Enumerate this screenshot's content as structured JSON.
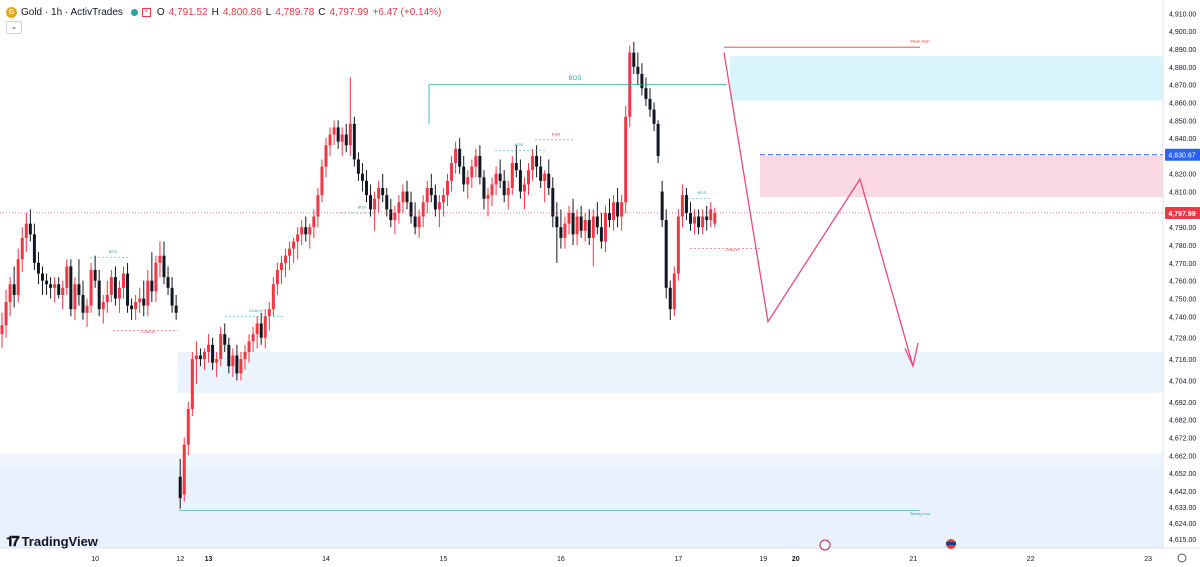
{
  "header": {
    "symbol": "Gold · 1h · ActivTrades",
    "open_label": "O",
    "open": "4,791.52",
    "high_label": "H",
    "high": "4,800.86",
    "low_label": "L",
    "low": "4,789.78",
    "close_label": "C",
    "close": "4,797.99",
    "change": "+6.47 (+0.14%)"
  },
  "logo_text": "TradingView",
  "colors": {
    "bull": "#f23645",
    "bear": "#131722",
    "accent": "#2962ff",
    "zone_pink": "#f8c7d8",
    "zone_cyan": "#b9ebf5",
    "zone_blue": "#e3eefb"
  },
  "chart_data": {
    "type": "candlestick",
    "ylim": [
      4610,
      4913
    ],
    "y_ticks": [
      "4,910.00",
      "4,900.00",
      "4,890.00",
      "4,880.00",
      "4,870.00",
      "4,860.00",
      "4,850.00",
      "4,840.00",
      "4,820.00",
      "4,810.00",
      "4,800.00",
      "4,790.00",
      "4,780.00",
      "4,770.00",
      "4,760.00",
      "4,750.00",
      "4,740.00",
      "4,728.00",
      "4,716.00",
      "4,704.00",
      "4,692.00",
      "4,682.00",
      "4,672.00",
      "4,662.00",
      "4,652.00",
      "4,642.00",
      "4,633.00",
      "4,624.00",
      "4,615.00"
    ],
    "x_ticks": [
      {
        "label": "10",
        "bar": 23
      },
      {
        "label": "12",
        "bar": 44
      },
      {
        "label": "13",
        "bar": 51
      },
      {
        "label": "14",
        "bar": 80
      },
      {
        "label": "15",
        "bar": 109
      },
      {
        "label": "16",
        "bar": 138
      },
      {
        "label": "17",
        "bar": 167
      },
      {
        "label": "19",
        "bar": 188
      },
      {
        "label": "20",
        "bar": 196
      },
      {
        "label": "21",
        "bar": 225
      },
      {
        "label": "22",
        "bar": 254
      },
      {
        "label": "23",
        "bar": 283
      }
    ],
    "current_price": "4,797.99",
    "marked_price": "4,830.67",
    "candles": [
      [
        4730,
        4742,
        4722,
        4735
      ],
      [
        4735,
        4755,
        4728,
        4748
      ],
      [
        4748,
        4762,
        4740,
        4758
      ],
      [
        4758,
        4768,
        4745,
        4752
      ],
      [
        4752,
        4778,
        4748,
        4772
      ],
      [
        4772,
        4790,
        4765,
        4784
      ],
      [
        4784,
        4798,
        4776,
        4792
      ],
      [
        4792,
        4800,
        4782,
        4786
      ],
      [
        4786,
        4792,
        4766,
        4770
      ],
      [
        4770,
        4776,
        4758,
        4764
      ],
      [
        4764,
        4768,
        4752,
        4760
      ],
      [
        4760,
        4764,
        4752,
        4758
      ],
      [
        4758,
        4762,
        4750,
        4756
      ],
      [
        4756,
        4762,
        4748,
        4758
      ],
      [
        4758,
        4762,
        4750,
        4752
      ],
      [
        4752,
        4760,
        4744,
        4756
      ],
      [
        4756,
        4772,
        4752,
        4768
      ],
      [
        4768,
        4772,
        4740,
        4744
      ],
      [
        4744,
        4762,
        4738,
        4758
      ],
      [
        4758,
        4772,
        4746,
        4752
      ],
      [
        4752,
        4760,
        4738,
        4742
      ],
      [
        4742,
        4750,
        4734,
        4746
      ],
      [
        4746,
        4770,
        4742,
        4766
      ],
      [
        4766,
        4774,
        4756,
        4760
      ],
      [
        4760,
        4766,
        4740,
        4744
      ],
      [
        4744,
        4752,
        4736,
        4748
      ],
      [
        4748,
        4760,
        4742,
        4752
      ],
      [
        4752,
        4766,
        4748,
        4762
      ],
      [
        4762,
        4768,
        4746,
        4750
      ],
      [
        4750,
        4760,
        4742,
        4756
      ],
      [
        4756,
        4768,
        4750,
        4764
      ],
      [
        4764,
        4770,
        4742,
        4746
      ],
      [
        4746,
        4750,
        4738,
        4744
      ],
      [
        4744,
        4752,
        4738,
        4748
      ],
      [
        4748,
        4756,
        4742,
        4750
      ],
      [
        4750,
        4760,
        4740,
        4746
      ],
      [
        4746,
        4766,
        4740,
        4760
      ],
      [
        4760,
        4776,
        4748,
        4754
      ],
      [
        4754,
        4774,
        4748,
        4770
      ],
      [
        4770,
        4782,
        4762,
        4774
      ],
      [
        4774,
        4782,
        4758,
        4762
      ],
      [
        4762,
        4768,
        4752,
        4756
      ],
      [
        4756,
        4762,
        4742,
        4746
      ],
      [
        4746,
        4752,
        4738,
        4742
      ],
      [
        4650,
        4660,
        4632,
        4638
      ],
      [
        4640,
        4672,
        4636,
        4668
      ],
      [
        4668,
        4692,
        4662,
        4688
      ],
      [
        4688,
        4720,
        4684,
        4716
      ],
      [
        4716,
        4726,
        4702,
        4718
      ],
      [
        4718,
        4722,
        4712,
        4716
      ],
      [
        4716,
        4722,
        4710,
        4720
      ],
      [
        4720,
        4730,
        4714,
        4724
      ],
      [
        4724,
        4728,
        4710,
        4714
      ],
      [
        4714,
        4720,
        4706,
        4716
      ],
      [
        4716,
        4734,
        4712,
        4730
      ],
      [
        4730,
        4736,
        4720,
        4724
      ],
      [
        4724,
        4728,
        4708,
        4712
      ],
      [
        4712,
        4722,
        4706,
        4718
      ],
      [
        4718,
        4724,
        4704,
        4708
      ],
      [
        4708,
        4720,
        4704,
        4716
      ],
      [
        4716,
        4724,
        4710,
        4720
      ],
      [
        4720,
        4730,
        4714,
        4726
      ],
      [
        4726,
        4734,
        4720,
        4730
      ],
      [
        4730,
        4740,
        4722,
        4736
      ],
      [
        4736,
        4742,
        4724,
        4728
      ],
      [
        4728,
        4744,
        4722,
        4740
      ],
      [
        4740,
        4748,
        4732,
        4744
      ],
      [
        4744,
        4762,
        4740,
        4758
      ],
      [
        4758,
        4770,
        4752,
        4766
      ],
      [
        4766,
        4774,
        4758,
        4770
      ],
      [
        4770,
        4778,
        4762,
        4774
      ],
      [
        4774,
        4782,
        4766,
        4778
      ],
      [
        4778,
        4784,
        4770,
        4782
      ],
      [
        4782,
        4790,
        4772,
        4786
      ],
      [
        4786,
        4794,
        4780,
        4790
      ],
      [
        4790,
        4796,
        4782,
        4786
      ],
      [
        4786,
        4792,
        4778,
        4790
      ],
      [
        4790,
        4800,
        4784,
        4796
      ],
      [
        4796,
        4812,
        4790,
        4808
      ],
      [
        4808,
        4828,
        4804,
        4824
      ],
      [
        4824,
        4840,
        4818,
        4836
      ],
      [
        4836,
        4846,
        4830,
        4842
      ],
      [
        4842,
        4850,
        4836,
        4846
      ],
      [
        4846,
        4850,
        4834,
        4838
      ],
      [
        4838,
        4846,
        4830,
        4842
      ],
      [
        4842,
        4848,
        4832,
        4836
      ],
      [
        4836,
        4874,
        4830,
        4848
      ],
      [
        4848,
        4852,
        4824,
        4828
      ],
      [
        4828,
        4832,
        4816,
        4820
      ],
      [
        4820,
        4826,
        4810,
        4816
      ],
      [
        4816,
        4822,
        4804,
        4808
      ],
      [
        4808,
        4814,
        4796,
        4800
      ],
      [
        4800,
        4810,
        4788,
        4806
      ],
      [
        4806,
        4816,
        4798,
        4812
      ],
      [
        4812,
        4820,
        4804,
        4808
      ],
      [
        4808,
        4812,
        4796,
        4800
      ],
      [
        4800,
        4806,
        4790,
        4794
      ],
      [
        4794,
        4802,
        4786,
        4798
      ],
      [
        4798,
        4808,
        4792,
        4804
      ],
      [
        4804,
        4814,
        4798,
        4810
      ],
      [
        4810,
        4816,
        4800,
        4804
      ],
      [
        4804,
        4810,
        4792,
        4796
      ],
      [
        4796,
        4804,
        4786,
        4790
      ],
      [
        4790,
        4800,
        4784,
        4796
      ],
      [
        4796,
        4808,
        4790,
        4804
      ],
      [
        4804,
        4816,
        4798,
        4812
      ],
      [
        4812,
        4820,
        4804,
        4808
      ],
      [
        4808,
        4814,
        4796,
        4800
      ],
      [
        4800,
        4808,
        4790,
        4804
      ],
      [
        4804,
        4812,
        4796,
        4808
      ],
      [
        4808,
        4820,
        4802,
        4816
      ],
      [
        4816,
        4830,
        4810,
        4826
      ],
      [
        4826,
        4838,
        4820,
        4834
      ],
      [
        4834,
        4840,
        4820,
        4824
      ],
      [
        4824,
        4830,
        4810,
        4814
      ],
      [
        4814,
        4822,
        4806,
        4818
      ],
      [
        4818,
        4828,
        4812,
        4824
      ],
      [
        4824,
        4834,
        4818,
        4830
      ],
      [
        4830,
        4836,
        4814,
        4818
      ],
      [
        4818,
        4822,
        4800,
        4806
      ],
      [
        4806,
        4812,
        4796,
        4808
      ],
      [
        4808,
        4818,
        4802,
        4814
      ],
      [
        4814,
        4824,
        4808,
        4820
      ],
      [
        4820,
        4828,
        4812,
        4816
      ],
      [
        4816,
        4822,
        4804,
        4808
      ],
      [
        4808,
        4816,
        4800,
        4812
      ],
      [
        4812,
        4830,
        4808,
        4826
      ],
      [
        4826,
        4836,
        4818,
        4822
      ],
      [
        4822,
        4828,
        4806,
        4810
      ],
      [
        4810,
        4818,
        4800,
        4814
      ],
      [
        4814,
        4826,
        4808,
        4822
      ],
      [
        4822,
        4834,
        4816,
        4830
      ],
      [
        4830,
        4836,
        4818,
        4824
      ],
      [
        4824,
        4830,
        4812,
        4816
      ],
      [
        4816,
        4822,
        4804,
        4820
      ],
      [
        4820,
        4828,
        4808,
        4812
      ],
      [
        4812,
        4818,
        4790,
        4796
      ],
      [
        4796,
        4804,
        4770,
        4790
      ],
      [
        4790,
        4800,
        4778,
        4784
      ],
      [
        4784,
        4796,
        4778,
        4792
      ],
      [
        4792,
        4802,
        4786,
        4798
      ],
      [
        4798,
        4806,
        4780,
        4786
      ],
      [
        4786,
        4800,
        4780,
        4796
      ],
      [
        4796,
        4802,
        4784,
        4788
      ],
      [
        4788,
        4798,
        4782,
        4794
      ],
      [
        4794,
        4800,
        4780,
        4784
      ],
      [
        4784,
        4800,
        4768,
        4796
      ],
      [
        4796,
        4804,
        4786,
        4790
      ],
      [
        4790,
        4798,
        4778,
        4782
      ],
      [
        4782,
        4802,
        4776,
        4798
      ],
      [
        4798,
        4806,
        4790,
        4794
      ],
      [
        4794,
        4808,
        4788,
        4804
      ],
      [
        4804,
        4812,
        4790,
        4796
      ],
      [
        4796,
        4808,
        4788,
        4804
      ],
      [
        4804,
        4858,
        4798,
        4852
      ],
      [
        4852,
        4892,
        4846,
        4888
      ],
      [
        4888,
        4894,
        4876,
        4880
      ],
      [
        4880,
        4888,
        4870,
        4876
      ],
      [
        4876,
        4882,
        4864,
        4868
      ],
      [
        4868,
        4874,
        4858,
        4862
      ],
      [
        4862,
        4868,
        4852,
        4856
      ],
      [
        4856,
        4860,
        4844,
        4848
      ],
      [
        4848,
        4850,
        4826,
        4830
      ],
      [
        4810,
        4816,
        4790,
        4794
      ],
      [
        4794,
        4800,
        4750,
        4756
      ],
      [
        4756,
        4760,
        4738,
        4744
      ],
      [
        4744,
        4768,
        4740,
        4764
      ],
      [
        4764,
        4800,
        4760,
        4796
      ],
      [
        4796,
        4814,
        4790,
        4808
      ],
      [
        4808,
        4812,
        4794,
        4798
      ],
      [
        4798,
        4804,
        4788,
        4792
      ],
      [
        4792,
        4800,
        4786,
        4796
      ],
      [
        4796,
        4800,
        4786,
        4790
      ],
      [
        4790,
        4800,
        4786,
        4796
      ],
      [
        4796,
        4802,
        4788,
        4794
      ],
      [
        4794,
        4804,
        4790,
        4800
      ],
      [
        4792,
        4801,
        4790,
        4798
      ]
    ],
    "annotations": [
      {
        "text": "BOS",
        "type": "bos-line"
      },
      {
        "text": "Weak High",
        "type": "label"
      },
      {
        "text": "Strong Low",
        "type": "label"
      },
      {
        "text": "CHoCH",
        "type": "label"
      },
      {
        "text": "BOS",
        "type": "label"
      },
      {
        "text": "EQH",
        "type": "label"
      },
      {
        "text": "CHoCH",
        "type": "label"
      },
      {
        "text": "BOS",
        "type": "label"
      },
      {
        "text": "BOS",
        "type": "label"
      },
      {
        "text": "BOS",
        "type": "label"
      },
      {
        "text": "CHoCH",
        "type": "label"
      }
    ]
  }
}
